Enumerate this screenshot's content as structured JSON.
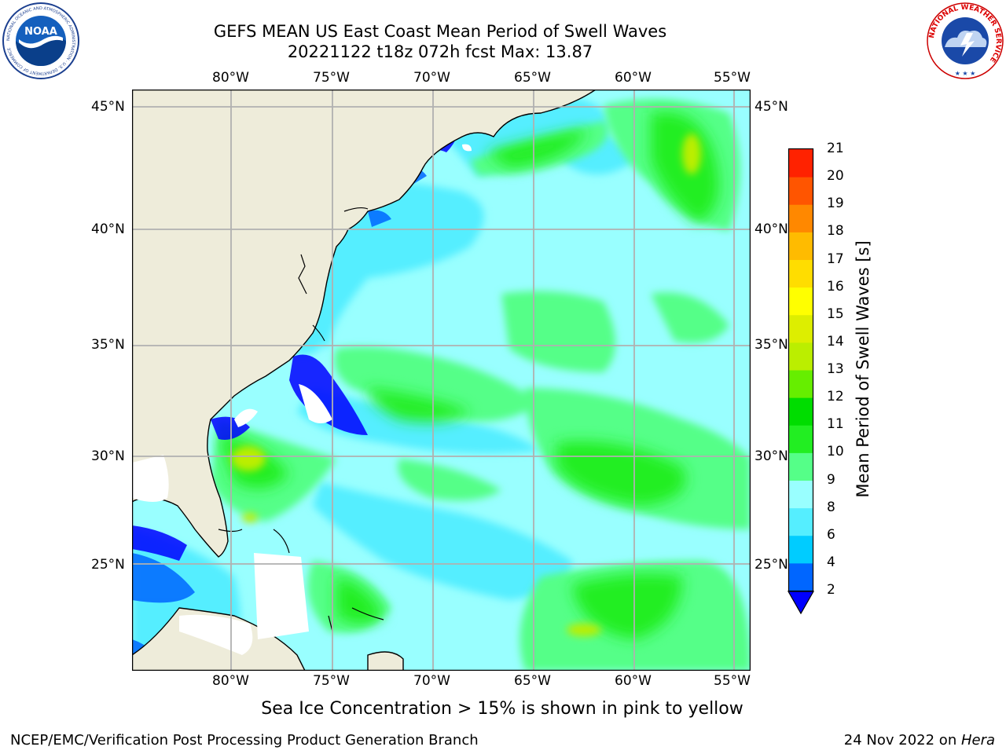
{
  "title": {
    "line1": "GEFS MEAN US East Coast Mean Period of Swell Waves",
    "line2": "20221122 t18z 072h fcst   Max: 13.87"
  },
  "map": {
    "lon_labels": [
      "80°W",
      "75°W",
      "70°W",
      "65°W",
      "60°W",
      "55°W"
    ],
    "lat_labels": [
      "45°N",
      "40°N",
      "35°N",
      "30°N",
      "25°N"
    ],
    "lon_range": [
      -85,
      -54.5
    ],
    "lat_range": [
      20.5,
      46
    ],
    "land_color": "#eeecda",
    "grid_color": "#b0b0b0"
  },
  "colorbar": {
    "label": "Mean Period of Swell Waves [s]",
    "ticks": [
      "2",
      "4",
      "6",
      "8",
      "9",
      "10",
      "11",
      "12",
      "13",
      "14",
      "15",
      "16",
      "17",
      "18",
      "19",
      "20",
      "21"
    ],
    "colors": [
      "#0066ff",
      "#00ccff",
      "#55eeff",
      "#99ffff",
      "#55ff88",
      "#22ee22",
      "#00dd00",
      "#66ee00",
      "#bbee00",
      "#ddee00",
      "#ffff00",
      "#ffdd00",
      "#ffbb00",
      "#ff8800",
      "#ff5500",
      "#ff2200",
      "#ff0000"
    ],
    "under_color": "#0000ff"
  },
  "notes": {
    "ice": "Sea Ice Concentration > 15% is shown in pink to yellow"
  },
  "footer": {
    "left": "NCEP/EMC/Verification Post Processing Product Generation Branch",
    "date": "24 Nov 2022 on ",
    "machine": "Hera"
  },
  "logos": {
    "noaa_text": "NOAA",
    "noaa_ring": "NATIONAL OCEANIC AND ATMOSPHERIC ADMINISTRATION · U.S. DEPARTMENT OF COMMERCE",
    "nws_ring": "NATIONAL WEATHER SERVICE"
  }
}
